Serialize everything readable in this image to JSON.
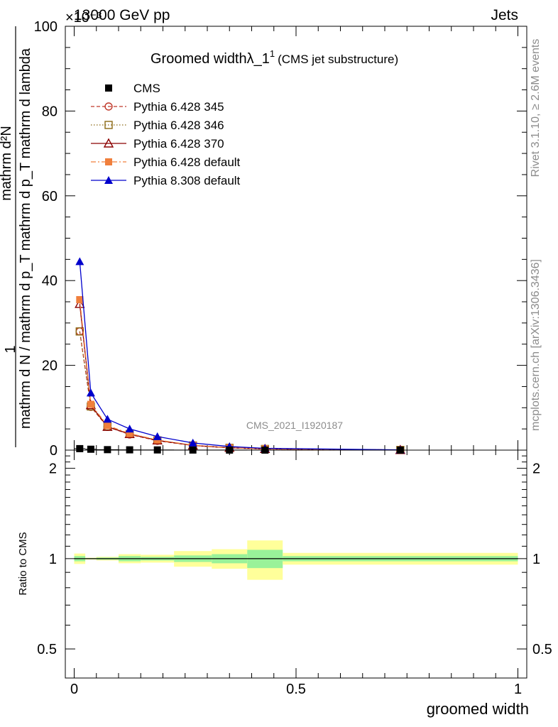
{
  "header": {
    "energy": "13000 GeV pp",
    "process": "Jets",
    "exponent": "×10⁻³",
    "watermark": "CMS_2021_I1920187",
    "side_top": "Rivet 3.1.10, ≥ 2.6M events",
    "side_bottom": "mcplots.cern.ch [arXiv:1306.3436]"
  },
  "chart_data": [
    {
      "type": "line",
      "title": "Groomed width λ_1¹",
      "title_main": "Groomed widthλ_1",
      "title_sup": "1",
      "title_note": "(CMS jet substructure)",
      "ylabel_one": "1",
      "ylabel_num": "mathrm d²N",
      "ylabel_den": "mathrm d N / mathrm d p_T mathrm d p_T mathrm d lambda",
      "ylim": [
        0,
        100
      ],
      "yticks": [
        0,
        20,
        40,
        60,
        80,
        100
      ],
      "xlim": [
        -0.02,
        1.02
      ],
      "legend_position": "top-left",
      "bin_edges": [
        0.0,
        0.025,
        0.05,
        0.1,
        0.15,
        0.225,
        0.31,
        0.39,
        0.47,
        1.0
      ],
      "x": [
        0.0125,
        0.0375,
        0.075,
        0.125,
        0.1875,
        0.2675,
        0.35,
        0.43,
        0.735
      ],
      "series": [
        {
          "name": "CMS",
          "color": "#000000",
          "marker": "square-filled",
          "line": "none",
          "values": [
            0.35,
            0.21,
            0.11,
            0.07,
            0.045,
            0.02,
            0.011,
            0.006,
            0.0005
          ]
        },
        {
          "name": "Pythia 6.428 345",
          "color": "#c0392b",
          "marker": "circle-open",
          "line": "dashed",
          "values": [
            28.0,
            10.2,
            5.5,
            3.7,
            2.2,
            1.1,
            0.55,
            0.27,
            0.04
          ]
        },
        {
          "name": "Pythia 6.428 346",
          "color": "#8b6914",
          "marker": "square-open",
          "line": "dotted",
          "values": [
            28.0,
            10.3,
            5.6,
            3.8,
            2.3,
            1.1,
            0.55,
            0.27,
            0.04
          ]
        },
        {
          "name": "Pythia 6.428 370",
          "color": "#8b0000",
          "marker": "triangle-open",
          "line": "solid",
          "values": [
            34.5,
            10.6,
            5.5,
            3.8,
            2.3,
            1.1,
            0.55,
            0.28,
            0.04
          ]
        },
        {
          "name": "Pythia 6.428 default",
          "color": "#f07f3c",
          "marker": "square-filled",
          "line": "dashdot",
          "values": [
            35.5,
            10.8,
            5.8,
            3.9,
            2.4,
            1.15,
            0.57,
            0.28,
            0.04
          ]
        },
        {
          "name": "Pythia 8.308 default",
          "color": "#0000cc",
          "marker": "triangle-filled",
          "line": "solid",
          "values": [
            44.5,
            13.5,
            7.3,
            5.0,
            3.2,
            1.7,
            0.85,
            0.42,
            0.06
          ]
        }
      ]
    },
    {
      "type": "area",
      "ylabel": "Ratio to CMS",
      "xlabel": "groomed width",
      "ylim": [
        0.4,
        2.3
      ],
      "yticks": [
        0.5,
        1,
        2
      ],
      "ytick_labels": [
        "0.5",
        "1",
        "2"
      ],
      "xticks": [
        0,
        0.5,
        1
      ],
      "xtick_labels": [
        "0",
        "0.5",
        "1"
      ],
      "bin_edges": [
        0.0,
        0.025,
        0.05,
        0.1,
        0.15,
        0.225,
        0.31,
        0.39,
        0.47,
        1.0
      ],
      "stat_band": [
        0.02,
        0.004,
        0.008,
        0.02,
        0.014,
        0.025,
        0.035,
        0.07,
        0.02
      ],
      "total_band": [
        0.04,
        0.007,
        0.014,
        0.035,
        0.03,
        0.06,
        0.075,
        0.15,
        0.045
      ],
      "reference": 1
    }
  ]
}
